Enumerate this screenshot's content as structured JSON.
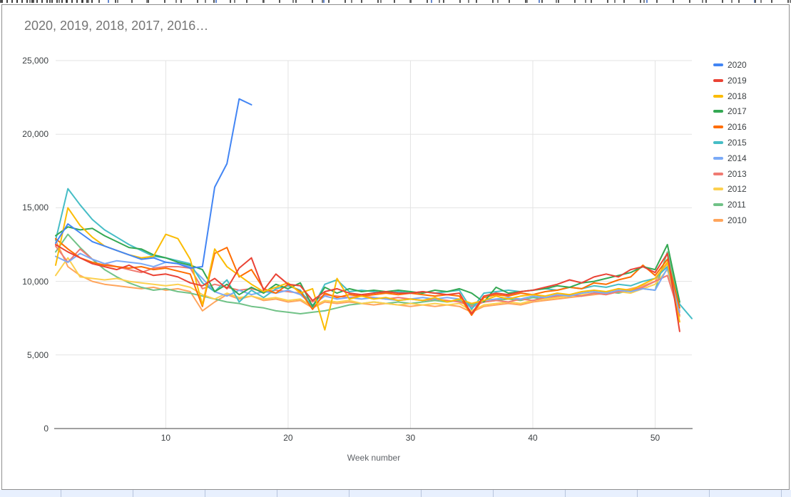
{
  "chart": {
    "title": "2020, 2019, 2018, 2017, 2016…",
    "x_axis_title": "Week number"
  },
  "chart_data": {
    "type": "line",
    "title": "2020, 2019, 2018, 2017, 2016…",
    "xlabel": "Week number",
    "ylabel": "",
    "x_start_week": 1,
    "xlim": [
      1,
      53
    ],
    "ylim": [
      0,
      25000
    ],
    "x_ticks": [
      10,
      20,
      30,
      40,
      50
    ],
    "y_ticks": [
      0,
      5000,
      10000,
      15000,
      20000,
      25000
    ],
    "grid": true,
    "legend_position": "right",
    "series": [
      {
        "name": "2020",
        "color": "#4285F4",
        "values": [
          12600,
          13900,
          13300,
          12700,
          12400,
          12100,
          11800,
          11500,
          11600,
          11300,
          11200,
          10900,
          11000,
          16400,
          18000,
          22400,
          22000
        ]
      },
      {
        "name": "2019",
        "color": "#EA4335",
        "values": [
          12500,
          12000,
          11600,
          11200,
          11000,
          10800,
          11100,
          10700,
          10400,
          10500,
          10300,
          9900,
          9700,
          10200,
          9500,
          10900,
          11600,
          9400,
          10500,
          9800,
          9700,
          8700,
          9300,
          9500,
          9200,
          9100,
          9200,
          9300,
          9200,
          9200,
          9300,
          9200,
          9100,
          9200,
          7800,
          9000,
          9200,
          9100,
          9300,
          9400,
          9600,
          9800,
          10100,
          9900,
          10300,
          10500,
          10300,
          10800,
          11000,
          10600,
          11900,
          6600
        ]
      },
      {
        "name": "2018",
        "color": "#FBBC04",
        "values": [
          11100,
          15000,
          13800,
          13000,
          12400,
          12100,
          11800,
          11600,
          11700,
          13200,
          12900,
          11500,
          8400,
          12200,
          11000,
          10400,
          9800,
          9300,
          9600,
          9900,
          9200,
          9500,
          6700,
          10200,
          8800,
          9000,
          8800,
          8900,
          8700,
          8800,
          8700,
          8900,
          8600,
          8800,
          8500,
          8700,
          9000,
          8800,
          9000,
          9100,
          9000,
          9200,
          9100,
          9300,
          9400,
          9300,
          9500,
          9400,
          9800,
          10200,
          11300,
          7250
        ]
      },
      {
        "name": "2017",
        "color": "#34A853",
        "values": [
          13100,
          13700,
          13500,
          13600,
          13100,
          12700,
          12300,
          12200,
          11800,
          11600,
          11300,
          11100,
          10800,
          9300,
          9800,
          9100,
          9600,
          9200,
          9800,
          9500,
          9900,
          8300,
          9600,
          9200,
          9500,
          9300,
          9400,
          9300,
          9400,
          9300,
          9200,
          9400,
          9300,
          9500,
          9200,
          8600,
          9600,
          9200,
          9300,
          9400,
          9500,
          9700,
          9600,
          9900,
          10000,
          10200,
          10400,
          10600,
          11000,
          10800,
          12500,
          8600
        ]
      },
      {
        "name": "2016",
        "color": "#FF6D01",
        "values": [
          12900,
          12200,
          11600,
          11300,
          11100,
          11000,
          10900,
          11000,
          10800,
          10900,
          10700,
          10500,
          8300,
          11900,
          12300,
          10300,
          10800,
          9500,
          9200,
          9800,
          9300,
          8100,
          9200,
          8900,
          9100,
          9000,
          9100,
          9200,
          9100,
          9200,
          9100,
          9000,
          9100,
          9000,
          7700,
          8900,
          9100,
          9000,
          9200,
          9100,
          9300,
          9400,
          9600,
          9500,
          9900,
          9800,
          10100,
          10300,
          11100,
          10400,
          11500,
          8200
        ]
      },
      {
        "name": "2015",
        "color": "#46BDC6",
        "values": [
          12800,
          16300,
          15200,
          14200,
          13500,
          13000,
          12500,
          12100,
          11700,
          11600,
          11400,
          11200,
          9900,
          9300,
          10100,
          8600,
          9400,
          8900,
          9500,
          9700,
          9400,
          8200,
          9800,
          10100,
          9300,
          9400,
          9300,
          9200,
          9300,
          9200,
          9300,
          9200,
          9300,
          9400,
          8100,
          9200,
          9300,
          9400,
          9300,
          9400,
          9500,
          9400,
          9600,
          9500,
          9700,
          9600,
          9800,
          9700,
          10000,
          10200,
          11000,
          8450,
          7475
        ]
      },
      {
        "name": "2014",
        "color": "#7BAAF7",
        "values": [
          11700,
          11300,
          11900,
          11500,
          11200,
          11400,
          11300,
          11200,
          11000,
          11300,
          11200,
          11000,
          10200,
          9300,
          9000,
          9400,
          9100,
          9300,
          9200,
          9400,
          9100,
          8400,
          9000,
          8800,
          8900,
          8800,
          8900,
          8800,
          8700,
          8800,
          8900,
          8800,
          8900,
          8800,
          8200,
          8700,
          8800,
          8900,
          8800,
          9000,
          8900,
          9100,
          9000,
          9200,
          9300,
          9200,
          9400,
          9300,
          9500,
          9400,
          10900,
          7900
        ]
      },
      {
        "name": "2013",
        "color": "#F07B72",
        "values": [
          12400,
          11300,
          12200,
          11500,
          11200,
          11000,
          10800,
          10600,
          10900,
          11000,
          11000,
          10900,
          9500,
          9800,
          9600,
          9400,
          9500,
          9300,
          9400,
          9300,
          9200,
          8600,
          9100,
          9000,
          8900,
          9000,
          8900,
          8800,
          8900,
          8800,
          8700,
          8800,
          8700,
          8600,
          8300,
          8600,
          8700,
          8600,
          8800,
          8700,
          8900,
          9000,
          9100,
          9000,
          9200,
          9100,
          9300,
          9400,
          9600,
          10000,
          10400,
          7700
        ]
      },
      {
        "name": "2012",
        "color": "#FCD04F",
        "values": [
          10400,
          11600,
          10300,
          10200,
          10100,
          10200,
          10000,
          9900,
          9800,
          9700,
          9800,
          9600,
          9100,
          8800,
          9200,
          8900,
          9000,
          8800,
          8900,
          8700,
          8800,
          8300,
          8700,
          8600,
          8700,
          8500,
          8600,
          8500,
          8400,
          8500,
          8400,
          8500,
          8400,
          8500,
          8000,
          8400,
          8500,
          8600,
          8500,
          8700,
          8800,
          8900,
          9000,
          9100,
          9200,
          9100,
          9300,
          9200,
          9500,
          9800,
          10800,
          7600
        ]
      },
      {
        "name": "2011",
        "color": "#71C287",
        "values": [
          12000,
          13200,
          12300,
          11500,
          10800,
          10300,
          9900,
          9600,
          9400,
          9500,
          9300,
          9200,
          9000,
          8800,
          8600,
          8500,
          8300,
          8200,
          8000,
          7900,
          7800,
          7900,
          8000,
          8200,
          8400,
          8500,
          8600,
          8500,
          8600,
          8500,
          8600,
          8700,
          8600,
          8700,
          8400,
          8600,
          8700,
          8800,
          8700,
          8900,
          8800,
          9000,
          9100,
          9000,
          9200,
          9300,
          9200,
          9400,
          9500,
          9400,
          12000,
          8400
        ]
      },
      {
        "name": "2010",
        "color": "#FFA55C",
        "values": [
          12800,
          11000,
          10400,
          10000,
          9800,
          9700,
          9600,
          9500,
          9600,
          9400,
          9500,
          9300,
          8000,
          8600,
          9100,
          8800,
          9000,
          8700,
          8800,
          8600,
          8700,
          8200,
          8600,
          8500,
          8600,
          8500,
          8400,
          8500,
          8400,
          8300,
          8400,
          8300,
          8400,
          8300,
          7900,
          8300,
          8400,
          8500,
          8400,
          8600,
          8700,
          8800,
          8900,
          9000,
          9100,
          9200,
          9300,
          9500,
          9700,
          10000,
          11200,
          8000
        ]
      }
    ]
  },
  "spreadsheet": {
    "bottom_row_cell_count": 12
  }
}
